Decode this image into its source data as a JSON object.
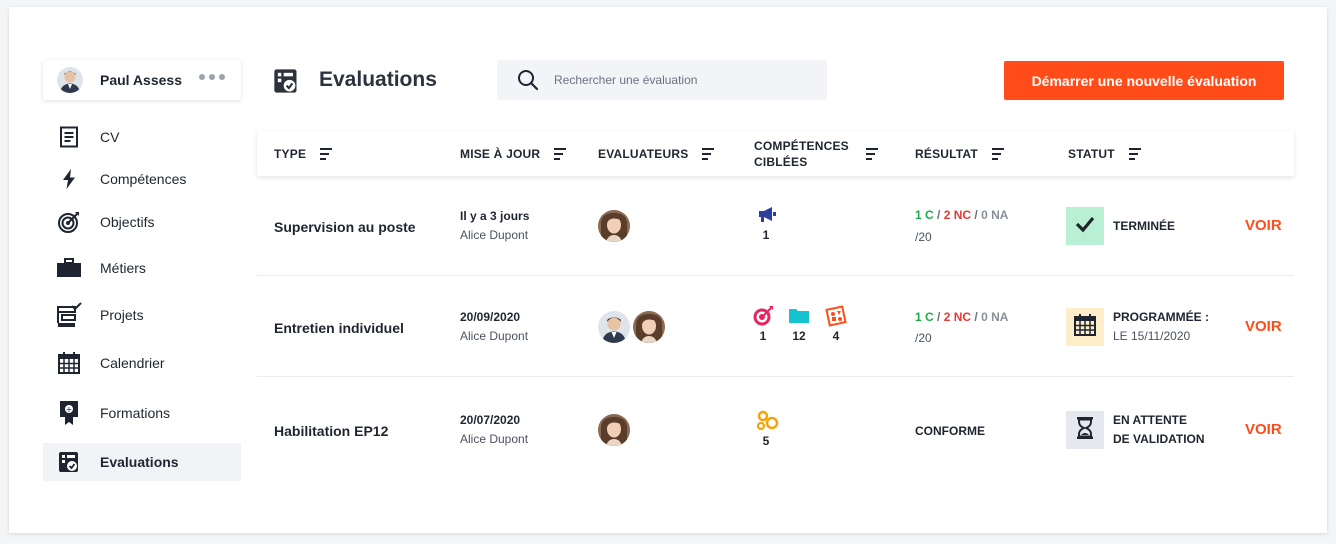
{
  "user": {
    "name": "Paul Assess",
    "more_icon": "more-dots-icon"
  },
  "sidebar": {
    "items": [
      {
        "label": "CV",
        "icon": "document-icon"
      },
      {
        "label": "Compétences",
        "icon": "lightning-icon"
      },
      {
        "label": "Objectifs",
        "icon": "target-icon"
      },
      {
        "label": "Métiers",
        "icon": "briefcase-icon"
      },
      {
        "label": "Projets",
        "icon": "projects-checklist-icon"
      },
      {
        "label": "Calendrier",
        "icon": "calendar-icon"
      },
      {
        "label": "Formations",
        "icon": "certificate-icon"
      },
      {
        "label": "Evaluations",
        "icon": "evaluation-icon",
        "active": true
      }
    ]
  },
  "header": {
    "title": "Evaluations",
    "search_placeholder": "Rechercher une évaluation",
    "new_button": "Démarrer une nouvelle évaluation"
  },
  "table": {
    "columns": {
      "type": "TYPE",
      "updated": "MISE À JOUR",
      "evaluators": "EVALUATEURS",
      "skills_line1": "COMPÉTENCES",
      "skills_line2": "CIBLÉES",
      "result": "RÉSULTAT",
      "status": "STATUT"
    },
    "rows": [
      {
        "type": "Supervision au poste",
        "date": "Il y a 3 jours",
        "author": "Alice Dupont",
        "evaluators": [
          "Alice"
        ],
        "skills": [
          {
            "icon": "megaphone-icon",
            "count": "1"
          }
        ],
        "result": {
          "c": "1 C",
          "nc": "2 NC",
          "na": "0 NA",
          "sep": " / ",
          "total": "/20"
        },
        "status": {
          "icon": "checkmark-icon",
          "line1": "TERMINÉE",
          "line2": "",
          "color": "#b9efd2"
        },
        "action": "VOIR"
      },
      {
        "type": "Entretien individuel",
        "date": "20/09/2020",
        "author": "Alice Dupont",
        "evaluators": [
          "Paul",
          "Alice"
        ],
        "skills": [
          {
            "icon": "target-icon",
            "count": "1"
          },
          {
            "icon": "folder-icon",
            "count": "12"
          },
          {
            "icon": "shape-badge-icon",
            "count": "4"
          }
        ],
        "result": {
          "c": "1 C",
          "nc": "2 NC",
          "na": "0 NA",
          "sep": " / ",
          "total": "/20"
        },
        "status": {
          "icon": "calendar-icon",
          "line1": "PROGRAMMÉE :",
          "line2": "LE 15/11/2020",
          "color": "#fdeec9"
        },
        "action": "VOIR"
      },
      {
        "type": "Habilitation EP12",
        "date": "20/07/2020",
        "author": "Alice Dupont",
        "evaluators": [
          "Alice"
        ],
        "skills": [
          {
            "icon": "gears-icon",
            "count": "5"
          }
        ],
        "result_text": "CONFORME",
        "status": {
          "icon": "hourglass-icon",
          "line1": "EN ATTENTE",
          "line2": "DE VALIDATION",
          "color": "#e6e8f0"
        },
        "action": "VOIR"
      }
    ]
  },
  "colors": {
    "accent": "#ff4c18",
    "ok": "#1ea94b",
    "ko": "#e53935"
  }
}
